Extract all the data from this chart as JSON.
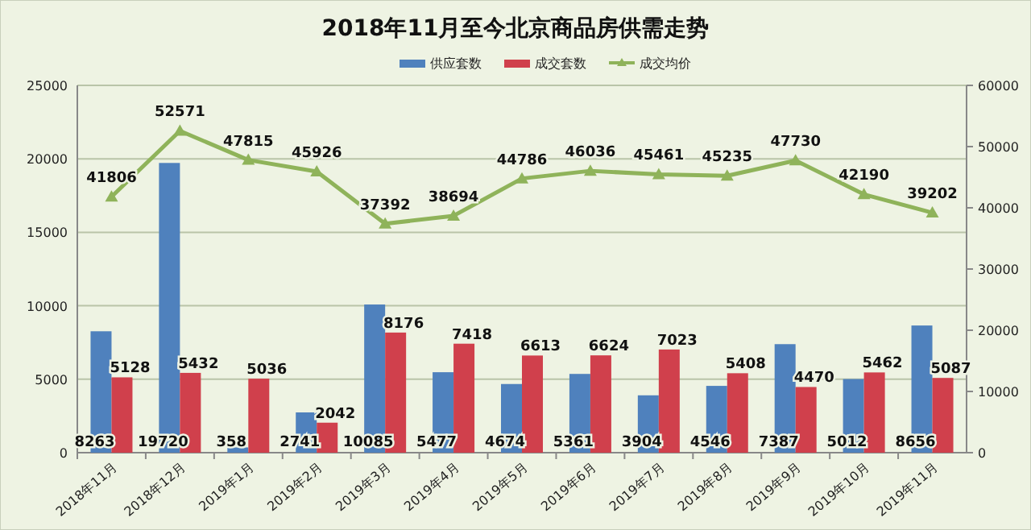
{
  "chart_data": {
    "type": "bar",
    "title": "2018年11月至今北京商品房供需走势",
    "categories": [
      "2018年11月",
      "2018年12月",
      "2019年1月",
      "2019年2月",
      "2019年3月",
      "2019年4月",
      "2019年5月",
      "2019年6月",
      "2019年7月",
      "2019年8月",
      "2019年9月",
      "2019年10月",
      "2019年11月"
    ],
    "series": [
      {
        "name": "供应套数",
        "color": "#4f81bd",
        "values": [
          8263,
          19720,
          358,
          2741,
          10085,
          5477,
          4674,
          5361,
          3904,
          4546,
          7387,
          5012,
          8656
        ]
      },
      {
        "name": "成交套数",
        "color": "#d0404c",
        "values": [
          5128,
          5432,
          5036,
          2042,
          8176,
          7418,
          6613,
          6624,
          7023,
          5408,
          4470,
          5462,
          5087
        ]
      },
      {
        "name": "成交均价",
        "type": "line",
        "axis": "y2",
        "color": "#8fb35a",
        "marker": "triangle",
        "values": [
          41806,
          52571,
          47815,
          45926,
          37392,
          38694,
          44786,
          46036,
          45461,
          45235,
          47730,
          42190,
          39202
        ]
      }
    ],
    "ylim": [
      0,
      25000
    ],
    "yticks": [
      0,
      5000,
      10000,
      15000,
      20000,
      25000
    ],
    "y2lim": [
      0,
      60000
    ],
    "y2ticks": [
      0,
      10000,
      20000,
      30000,
      40000,
      50000,
      60000
    ],
    "grid": "y",
    "legend": "top",
    "data_labels": true
  }
}
